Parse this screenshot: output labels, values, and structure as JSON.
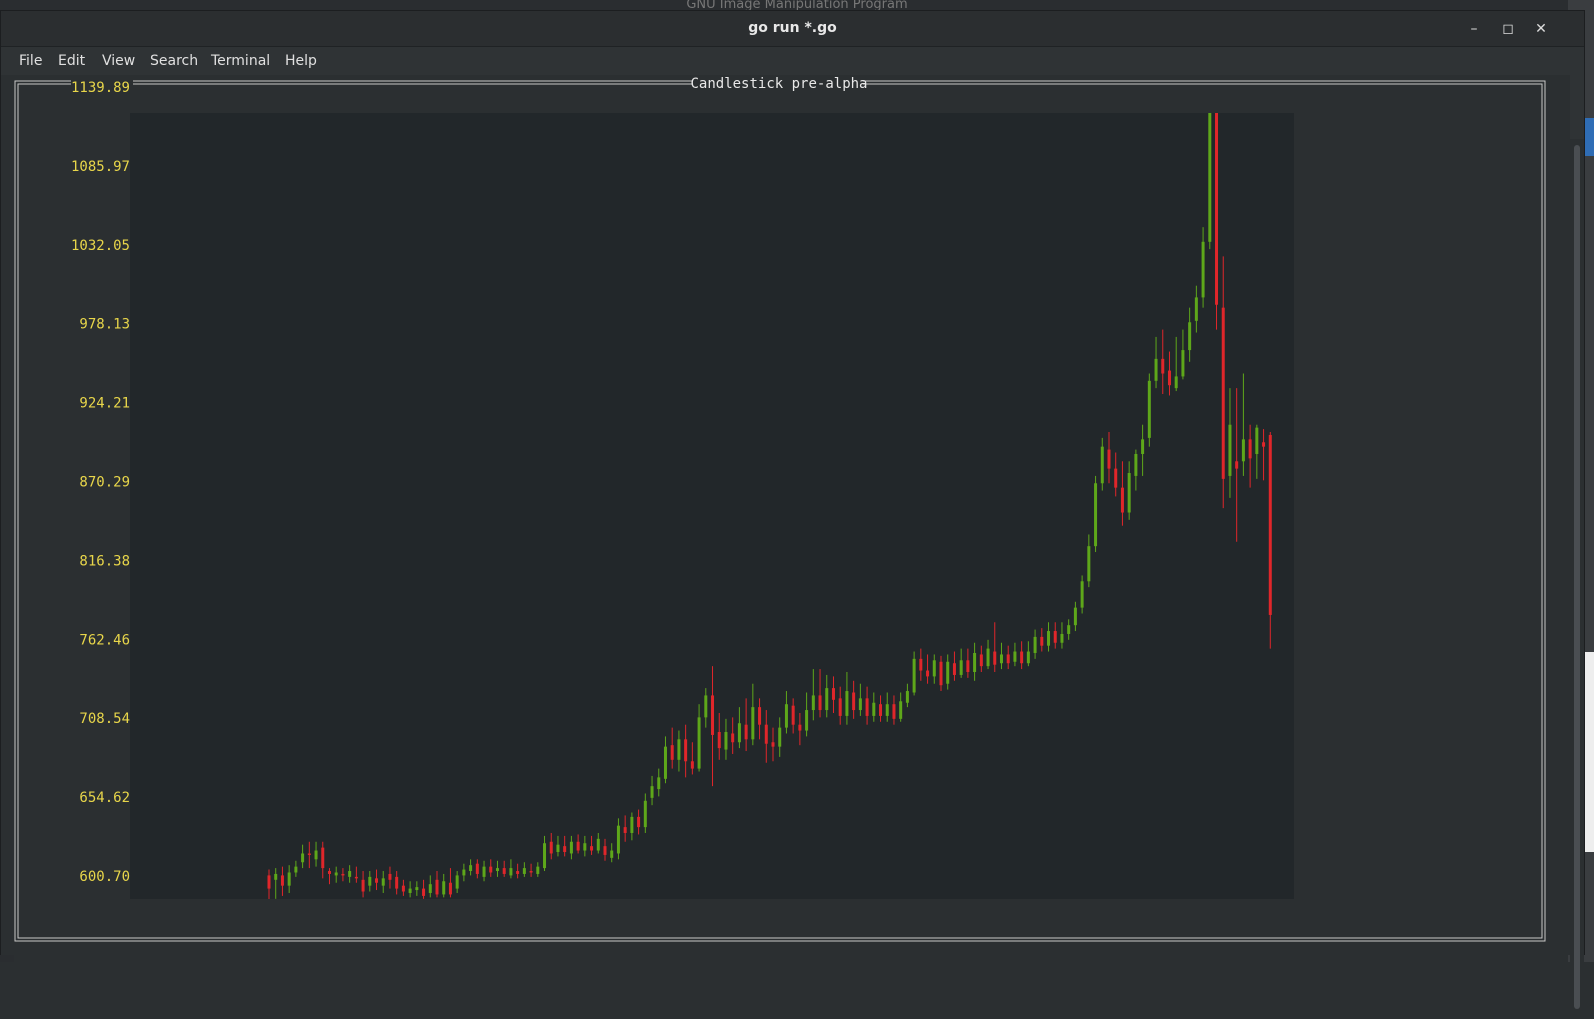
{
  "background": {
    "top_window_title": "GNU Image Manipulation Program"
  },
  "window": {
    "title": "go run *.go",
    "controls": {
      "minimize_icon": "minimize-icon",
      "maximize_icon": "maximize-icon",
      "close_icon": "close-icon"
    }
  },
  "menubar": {
    "items": [
      "File",
      "Edit",
      "View",
      "Search",
      "Terminal",
      "Help"
    ]
  },
  "colors": {
    "up": "#5ea71a",
    "down": "#e0262a",
    "axis_label": "#e8d64a",
    "border": "#c8c8c8",
    "plot_bg": "#22272a",
    "terminal_bg": "#2b2f31"
  },
  "chart_data": {
    "type": "candlestick",
    "title": "Candlestick pre-alpha",
    "y_ticks": [
      "1139.89",
      "1085.97",
      "1032.05",
      "978.13",
      "924.21",
      "870.29",
      "816.38",
      "762.46",
      "708.54",
      "654.62",
      "600.70"
    ],
    "ylim": [
      580,
      1139.89
    ],
    "candles": [
      [
        597,
        588,
        601,
        580
      ],
      [
        594,
        598,
        602,
        581
      ],
      [
        597,
        590,
        603,
        583
      ],
      [
        590,
        599,
        604,
        585
      ],
      [
        599,
        603,
        607,
        596
      ],
      [
        606,
        612,
        618,
        602
      ],
      [
        612,
        611,
        620,
        602
      ],
      [
        608,
        614,
        620,
        603
      ],
      [
        616,
        602,
        620,
        595
      ],
      [
        600,
        598,
        602,
        591
      ],
      [
        597,
        599,
        603,
        592
      ],
      [
        598,
        597,
        602,
        593
      ],
      [
        596,
        600,
        604,
        592
      ],
      [
        596,
        595,
        603,
        592
      ],
      [
        594,
        586,
        600,
        582
      ],
      [
        590,
        596,
        600,
        586
      ],
      [
        595,
        592,
        601,
        587
      ],
      [
        590,
        595,
        600,
        585
      ],
      [
        598,
        594,
        603,
        588
      ],
      [
        596,
        588,
        600,
        584
      ],
      [
        590,
        586,
        594,
        583
      ],
      [
        585,
        588,
        593,
        582
      ],
      [
        587,
        589,
        593,
        583
      ],
      [
        588,
        583,
        594,
        581
      ],
      [
        585,
        591,
        597,
        582
      ],
      [
        594,
        584,
        600,
        582
      ],
      [
        584,
        593,
        598,
        582
      ],
      [
        592,
        584,
        602,
        582
      ],
      [
        588,
        597,
        600,
        585
      ],
      [
        597,
        601,
        605,
        593
      ],
      [
        600,
        604,
        608,
        597
      ],
      [
        605,
        598,
        608,
        595
      ],
      [
        596,
        603,
        607,
        593
      ],
      [
        603,
        599,
        608,
        596
      ],
      [
        600,
        602,
        607,
        596
      ],
      [
        602,
        598,
        607,
        596
      ],
      [
        597,
        602,
        608,
        595
      ],
      [
        600,
        598,
        605,
        595
      ],
      [
        598,
        602,
        606,
        596
      ],
      [
        600,
        599,
        605,
        596
      ],
      [
        598,
        603,
        606,
        596
      ],
      [
        602,
        619,
        624,
        600
      ],
      [
        620,
        612,
        626,
        608
      ],
      [
        613,
        618,
        624,
        610
      ],
      [
        617,
        613,
        624,
        610
      ],
      [
        612,
        620,
        624,
        608
      ],
      [
        620,
        614,
        625,
        612
      ],
      [
        614,
        619,
        624,
        610
      ],
      [
        617,
        614,
        624,
        611
      ],
      [
        614,
        622,
        626,
        612
      ],
      [
        617,
        611,
        622,
        607
      ],
      [
        609,
        614,
        619,
        606
      ],
      [
        612,
        631,
        636,
        608
      ],
      [
        630,
        626,
        638,
        620
      ],
      [
        626,
        637,
        640,
        621
      ],
      [
        637,
        630,
        642,
        625
      ],
      [
        630,
        648,
        653,
        626
      ],
      [
        650,
        658,
        665,
        645
      ],
      [
        656,
        664,
        670,
        651
      ],
      [
        663,
        685,
        692,
        660
      ],
      [
        686,
        676,
        698,
        670
      ],
      [
        676,
        690,
        696,
        668
      ],
      [
        690,
        675,
        700,
        664
      ],
      [
        675,
        670,
        688,
        666
      ],
      [
        670,
        705,
        714,
        668
      ],
      [
        705,
        720,
        725,
        698
      ],
      [
        720,
        693,
        740,
        658
      ],
      [
        695,
        684,
        708,
        676
      ],
      [
        683,
        695,
        704,
        676
      ],
      [
        694,
        688,
        705,
        680
      ],
      [
        688,
        701,
        712,
        684
      ],
      [
        700,
        690,
        718,
        682
      ],
      [
        690,
        712,
        728,
        686
      ],
      [
        712,
        700,
        718,
        690
      ],
      [
        700,
        687,
        710,
        674
      ],
      [
        688,
        685,
        698,
        675
      ],
      [
        685,
        698,
        705,
        678
      ],
      [
        698,
        714,
        723,
        694
      ],
      [
        713,
        700,
        718,
        694
      ],
      [
        700,
        696,
        708,
        686
      ],
      [
        696,
        710,
        722,
        692
      ],
      [
        710,
        720,
        738,
        703
      ],
      [
        720,
        710,
        738,
        705
      ],
      [
        710,
        725,
        734,
        705
      ],
      [
        725,
        717,
        733,
        708
      ],
      [
        718,
        706,
        726,
        700
      ],
      [
        706,
        723,
        736,
        700
      ],
      [
        722,
        710,
        730,
        704
      ],
      [
        710,
        718,
        728,
        706
      ],
      [
        718,
        706,
        726,
        700
      ],
      [
        706,
        715,
        722,
        702
      ],
      [
        714,
        706,
        720,
        702
      ],
      [
        706,
        714,
        722,
        702
      ],
      [
        714,
        704,
        720,
        700
      ],
      [
        704,
        716,
        722,
        702
      ],
      [
        715,
        723,
        728,
        712
      ],
      [
        722,
        745,
        750,
        720
      ],
      [
        745,
        737,
        752,
        730
      ],
      [
        737,
        733,
        748,
        728
      ],
      [
        733,
        744,
        748,
        728
      ],
      [
        743,
        727,
        747,
        723
      ],
      [
        728,
        743,
        748,
        724
      ],
      [
        742,
        734,
        750,
        730
      ],
      [
        734,
        744,
        752,
        732
      ],
      [
        744,
        736,
        752,
        732
      ],
      [
        736,
        749,
        756,
        730
      ],
      [
        748,
        740,
        754,
        736
      ],
      [
        740,
        752,
        758,
        738
      ],
      [
        750,
        741,
        770,
        736
      ],
      [
        742,
        748,
        756,
        738
      ],
      [
        748,
        742,
        754,
        738
      ],
      [
        743,
        750,
        756,
        740
      ],
      [
        750,
        742,
        757,
        738
      ],
      [
        742,
        750,
        757,
        740
      ],
      [
        749,
        760,
        765,
        745
      ],
      [
        760,
        754,
        766,
        750
      ],
      [
        754,
        764,
        770,
        750
      ],
      [
        764,
        756,
        770,
        752
      ],
      [
        756,
        762,
        770,
        752
      ],
      [
        762,
        768,
        772,
        758
      ],
      [
        768,
        780,
        784,
        764
      ],
      [
        780,
        798,
        802,
        776
      ],
      [
        798,
        822,
        830,
        794
      ],
      [
        822,
        865,
        870,
        818
      ],
      [
        865,
        890,
        896,
        860
      ],
      [
        888,
        875,
        900,
        865
      ],
      [
        875,
        862,
        886,
        856
      ],
      [
        862,
        845,
        880,
        836
      ],
      [
        845,
        872,
        880,
        840
      ],
      [
        870,
        885,
        888,
        860
      ],
      [
        885,
        895,
        905,
        870
      ],
      [
        896,
        935,
        940,
        890
      ],
      [
        935,
        950,
        965,
        930
      ],
      [
        950,
        940,
        970,
        926
      ],
      [
        942,
        932,
        955,
        925
      ],
      [
        930,
        938,
        965,
        928
      ],
      [
        938,
        956,
        970,
        936
      ],
      [
        956,
        975,
        985,
        948
      ],
      [
        976,
        992,
        1000,
        968
      ],
      [
        992,
        1030,
        1040,
        985
      ],
      [
        1030,
        1124,
        1139,
        1025
      ],
      [
        1124,
        987,
        1139,
        970
      ],
      [
        985,
        868,
        1020,
        848
      ],
      [
        870,
        905,
        930,
        855
      ],
      [
        880,
        875,
        930,
        825
      ],
      [
        880,
        895,
        940,
        870
      ],
      [
        895,
        882,
        905,
        862
      ],
      [
        885,
        903,
        905,
        868
      ],
      [
        893,
        890,
        902,
        867
      ],
      [
        898,
        775,
        900,
        752
      ]
    ]
  }
}
